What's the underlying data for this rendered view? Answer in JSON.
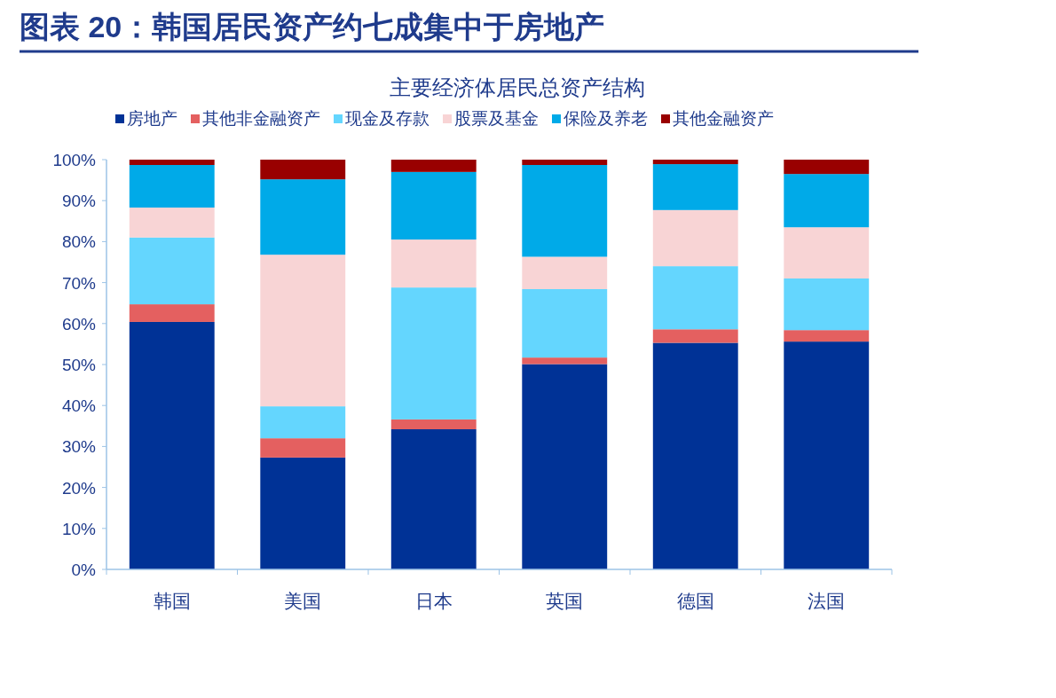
{
  "chart_data": {
    "type": "bar",
    "stacked": true,
    "title": "图表 20：韩国居民资产约七成集中于房地产",
    "subtitle": "主要经济体居民总资产结构",
    "categories": [
      "韩国",
      "美国",
      "日本",
      "英国",
      "德国",
      "法国"
    ],
    "series": [
      {
        "name": "房地产",
        "color": "#003296",
        "values": [
          60.4,
          27.3,
          34.2,
          50.1,
          55.3,
          55.6
        ]
      },
      {
        "name": "其他非金融资产",
        "color": "#e46060",
        "values": [
          4.3,
          4.7,
          2.4,
          1.6,
          3.3,
          2.8
        ]
      },
      {
        "name": "现金及存款",
        "color": "#64d6fe",
        "values": [
          16.3,
          7.8,
          32.2,
          16.7,
          15.4,
          12.6
        ]
      },
      {
        "name": "股票及基金",
        "color": "#f8d4d5",
        "values": [
          7.3,
          37.0,
          11.7,
          7.9,
          13.7,
          12.5
        ]
      },
      {
        "name": "保险及养老",
        "color": "#00aae8",
        "values": [
          10.4,
          18.4,
          16.5,
          22.4,
          11.2,
          13.0
        ]
      },
      {
        "name": "其他金融资产",
        "color": "#990000",
        "values": [
          1.3,
          4.8,
          3.0,
          1.3,
          1.1,
          3.5
        ]
      }
    ],
    "ylim": [
      0,
      100
    ],
    "yticks": [
      {
        "value": 0,
        "label": "0%"
      },
      {
        "value": 10,
        "label": "10%"
      },
      {
        "value": 20,
        "label": "20%"
      },
      {
        "value": 30,
        "label": "30%"
      },
      {
        "value": 40,
        "label": "40%"
      },
      {
        "value": 50,
        "label": "50%"
      },
      {
        "value": 60,
        "label": "60%"
      },
      {
        "value": 70,
        "label": "70%"
      },
      {
        "value": 80,
        "label": "80%"
      },
      {
        "value": 90,
        "label": "90%"
      },
      {
        "value": 100,
        "label": "100%"
      }
    ],
    "legend": "top",
    "grid": false
  }
}
